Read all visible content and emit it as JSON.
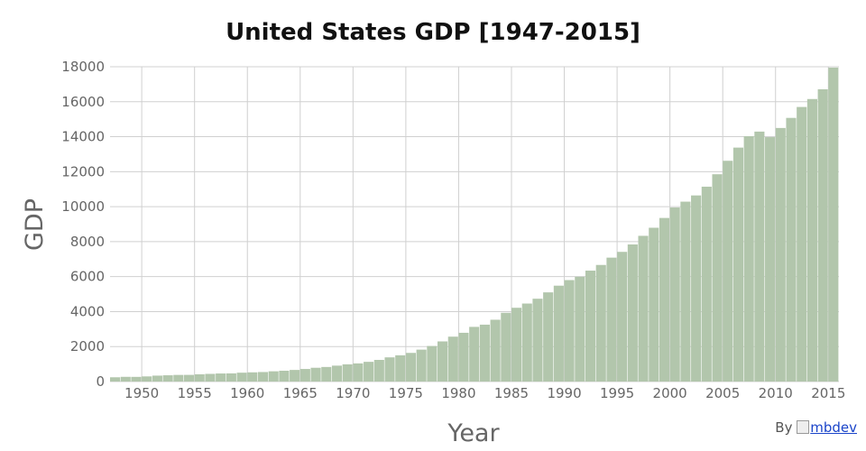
{
  "chart_data": {
    "type": "bar",
    "title": "United States GDP [1947-2015]",
    "xlabel": "Year",
    "ylabel": "GDP",
    "ylim": [
      0,
      18000
    ],
    "yticks": [
      0,
      2000,
      4000,
      6000,
      8000,
      10000,
      12000,
      14000,
      16000,
      18000
    ],
    "xticks": [
      1950,
      1955,
      1960,
      1965,
      1970,
      1975,
      1980,
      1985,
      1990,
      1995,
      2000,
      2005,
      2010,
      2015
    ],
    "grid": true,
    "legend": "none",
    "bar_color": "#b2c6ac",
    "x": [
      1947,
      1948,
      1949,
      1950,
      1951,
      1952,
      1953,
      1954,
      1955,
      1956,
      1957,
      1958,
      1959,
      1960,
      1961,
      1962,
      1963,
      1964,
      1965,
      1966,
      1967,
      1968,
      1969,
      1970,
      1971,
      1972,
      1973,
      1974,
      1975,
      1976,
      1977,
      1978,
      1979,
      1980,
      1981,
      1982,
      1983,
      1984,
      1985,
      1986,
      1987,
      1988,
      1989,
      1990,
      1991,
      1992,
      1993,
      1994,
      1995,
      1996,
      1997,
      1998,
      1999,
      2000,
      2001,
      2002,
      2003,
      2004,
      2005,
      2006,
      2007,
      2008,
      2009,
      2010,
      2011,
      2012,
      2013,
      2014,
      2015
    ],
    "values": [
      244,
      270,
      267,
      294,
      339,
      358,
      379,
      381,
      415,
      438,
      461,
      467,
      507,
      526,
      544,
      586,
      618,
      664,
      719,
      788,
      833,
      910,
      985,
      1038,
      1127,
      1238,
      1383,
      1500,
      1638,
      1825,
      2031,
      2295,
      2567,
      2788,
      3126,
      3253,
      3535,
      3931,
      4218,
      4460,
      4736,
      5100,
      5482,
      5801,
      5992,
      6342,
      6667,
      7085,
      7415,
      7839,
      8332,
      8794,
      9354,
      9952,
      10286,
      10642,
      11142,
      11853,
      12623,
      13377,
      14029,
      14292,
      13974,
      14499,
      15076,
      15700,
      16155,
      16712,
      17950
    ]
  },
  "credit": {
    "prefix": "By",
    "link_text": "mbdev"
  }
}
